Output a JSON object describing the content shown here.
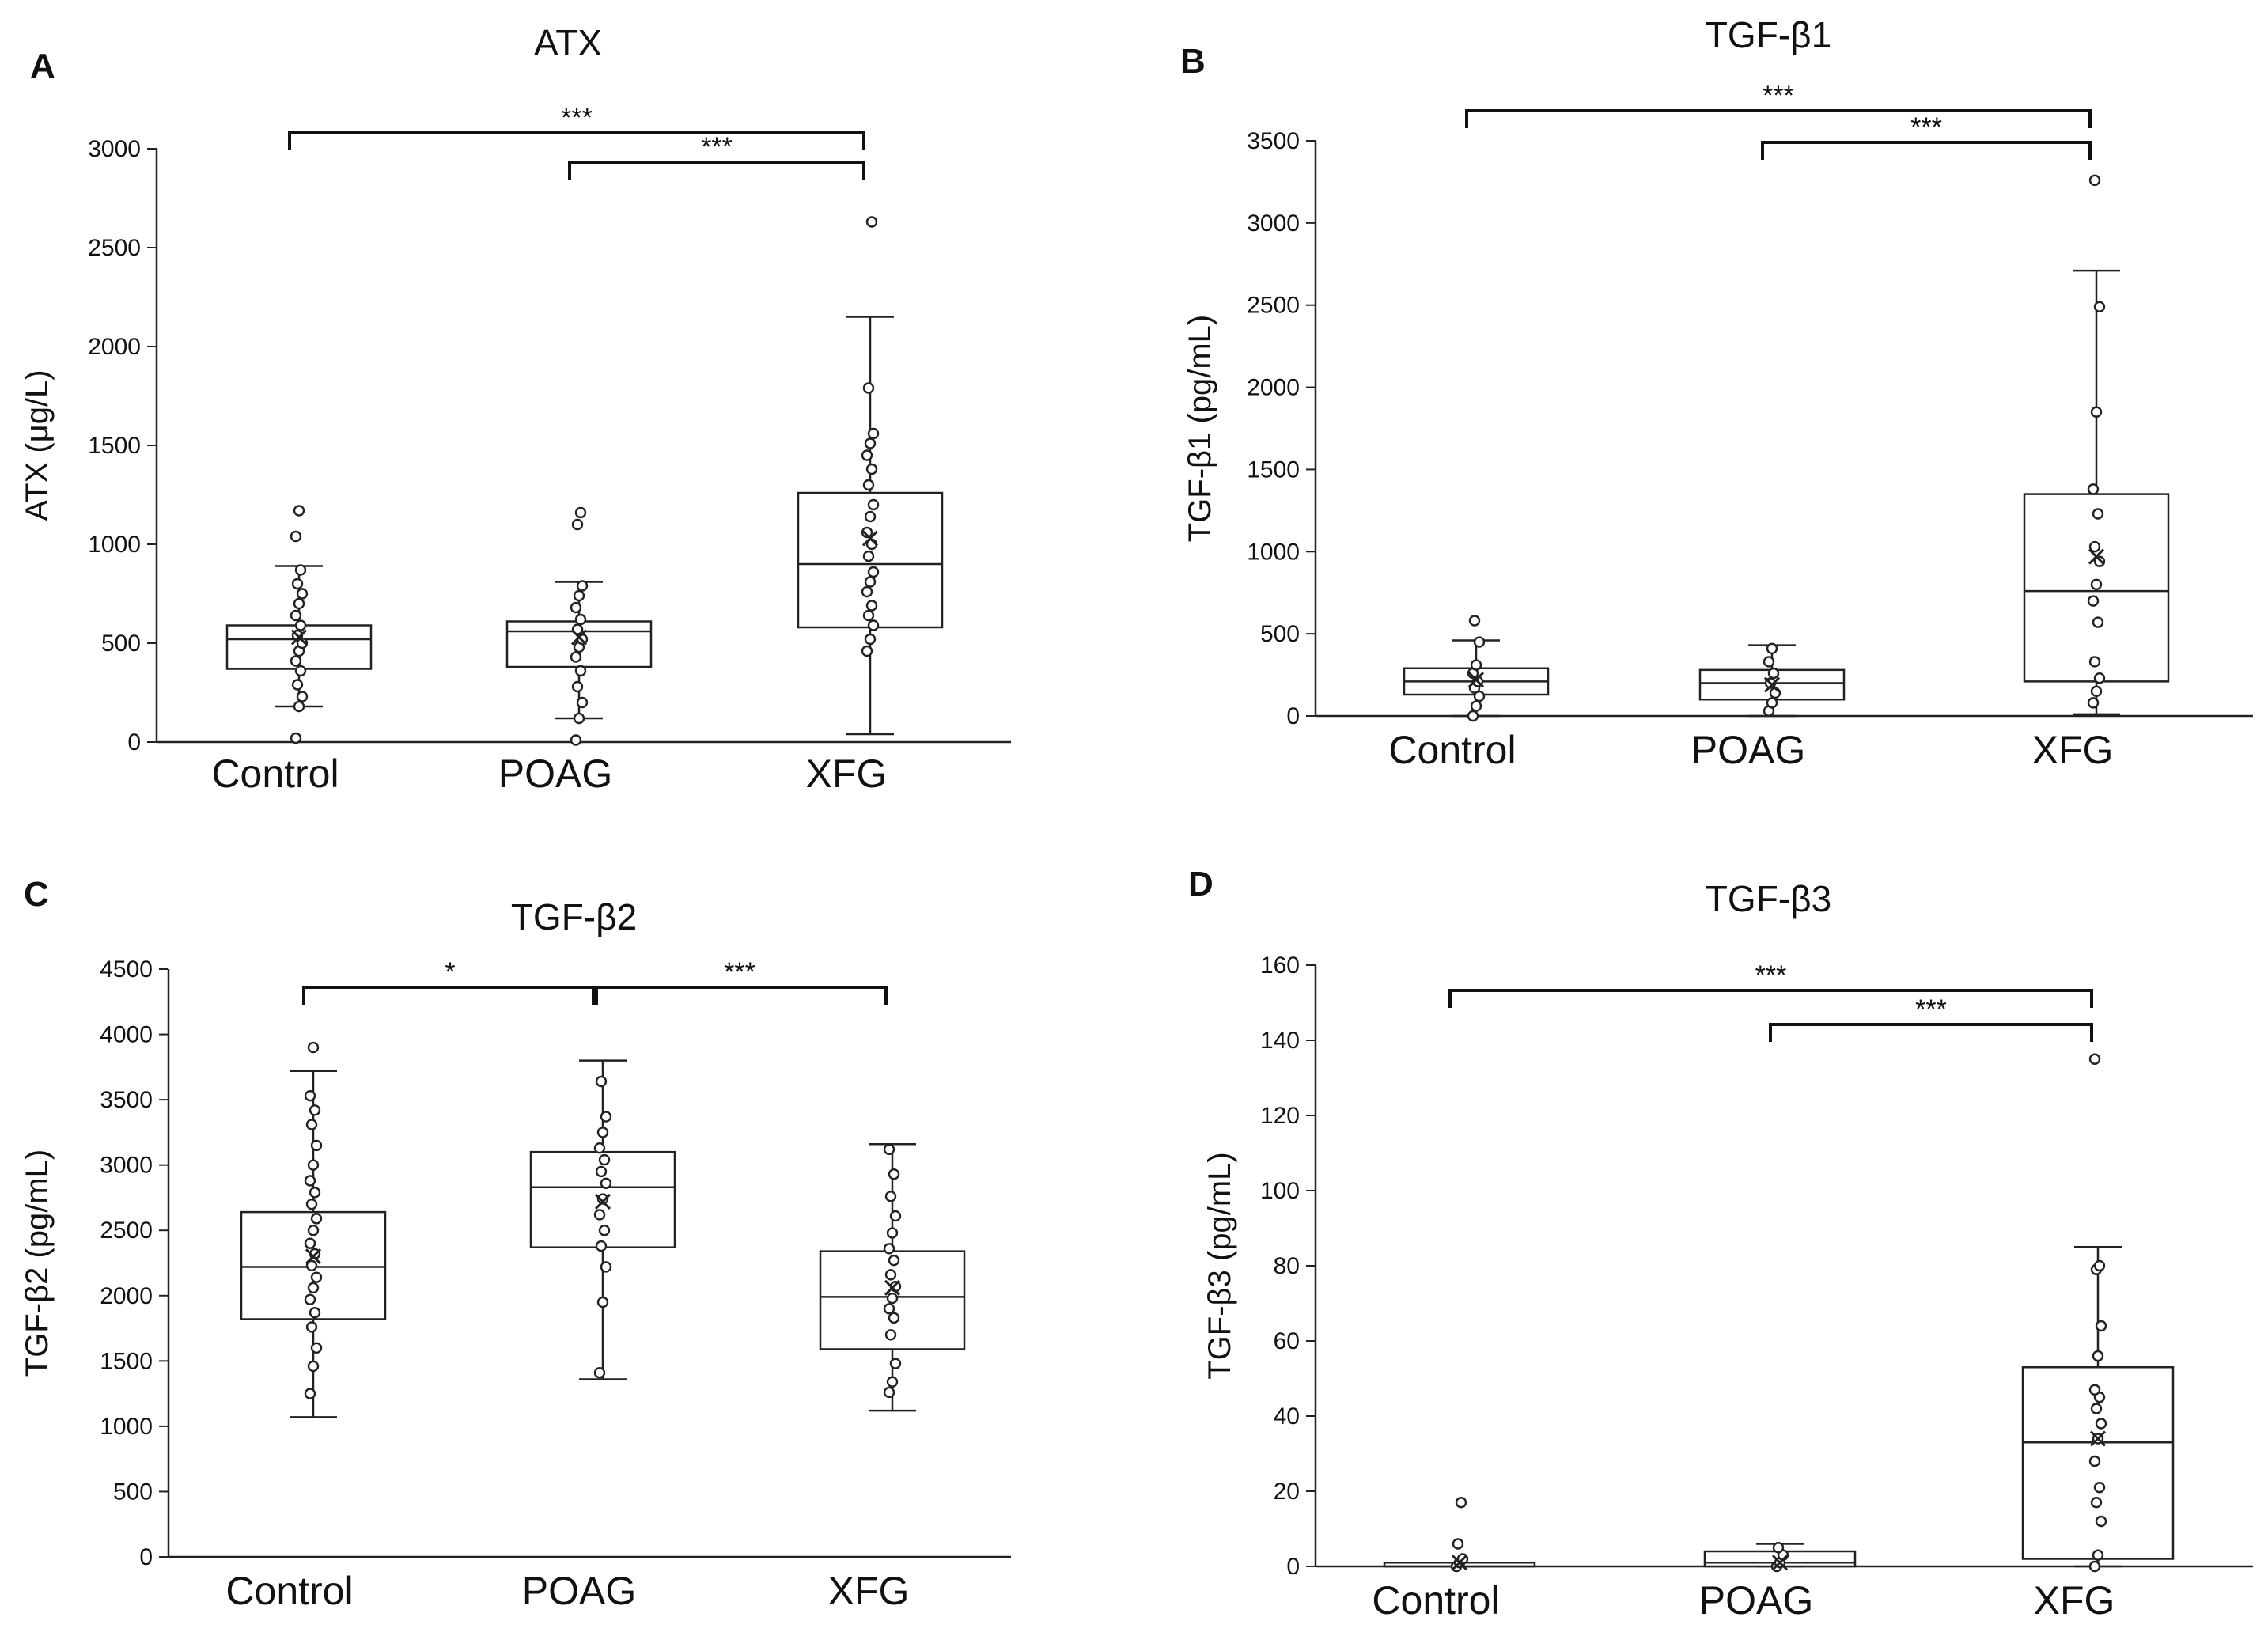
{
  "chart_data": [
    {
      "type": "box",
      "panel": "A",
      "title": "ATX",
      "ylabel": "ATX (μg/L)",
      "ylim": [
        0,
        3000
      ],
      "yticks": [
        0,
        500,
        1000,
        1500,
        2000,
        2500,
        3000
      ],
      "categories": [
        "Control",
        "POAG",
        "XFG"
      ],
      "boxes": [
        {
          "q1": 370,
          "median": 520,
          "q3": 590,
          "whisker_low": 180,
          "whisker_high": 890,
          "mean": 530,
          "points": [
            20,
            180,
            230,
            290,
            360,
            410,
            460,
            500,
            540,
            590,
            640,
            700,
            750,
            800,
            870,
            1040,
            1170
          ]
        },
        {
          "q1": 380,
          "median": 560,
          "q3": 610,
          "whisker_low": 120,
          "whisker_high": 810,
          "mean": 530,
          "points": [
            10,
            120,
            200,
            280,
            360,
            430,
            480,
            520,
            570,
            620,
            680,
            740,
            790,
            1100,
            1160
          ]
        },
        {
          "q1": 580,
          "median": 900,
          "q3": 1260,
          "whisker_low": 40,
          "whisker_high": 2150,
          "mean": 1030,
          "points": [
            460,
            520,
            590,
            640,
            690,
            760,
            810,
            860,
            940,
            1000,
            1060,
            1140,
            1200,
            1300,
            1380,
            1450,
            1510,
            1560,
            1790,
            2630
          ]
        }
      ],
      "comparisons": [
        {
          "from": "Control",
          "to": "XFG",
          "label": "***"
        },
        {
          "from": "POAG",
          "to": "XFG",
          "label": "***"
        }
      ]
    },
    {
      "type": "box",
      "panel": "B",
      "title": "TGF-β1",
      "ylabel": "TGF-β1 (pg/mL)",
      "ylim": [
        0,
        3500
      ],
      "yticks": [
        0,
        500,
        1000,
        1500,
        2000,
        2500,
        3000,
        3500
      ],
      "categories": [
        "Control",
        "POAG",
        "XFG"
      ],
      "boxes": [
        {
          "q1": 130,
          "median": 210,
          "q3": 290,
          "whisker_low": 0,
          "whisker_high": 460,
          "mean": 220,
          "points": [
            0,
            60,
            120,
            170,
            210,
            260,
            310,
            450,
            580
          ]
        },
        {
          "q1": 100,
          "median": 200,
          "q3": 280,
          "whisker_low": 0,
          "whisker_high": 430,
          "mean": 190,
          "points": [
            30,
            80,
            140,
            200,
            260,
            330,
            410
          ]
        },
        {
          "q1": 210,
          "median": 760,
          "q3": 1350,
          "whisker_low": 10,
          "whisker_high": 2710,
          "mean": 970,
          "points": [
            80,
            150,
            230,
            330,
            570,
            700,
            800,
            940,
            1030,
            1230,
            1380,
            1850,
            2490,
            3260
          ]
        }
      ],
      "comparisons": [
        {
          "from": "Control",
          "to": "XFG",
          "label": "***"
        },
        {
          "from": "POAG",
          "to": "XFG",
          "label": "***"
        }
      ]
    },
    {
      "type": "box",
      "panel": "C",
      "title": "TGF-β2",
      "ylabel": "TGF-β2 (pg/mL)",
      "ylim": [
        0,
        4500
      ],
      "yticks": [
        0,
        500,
        1000,
        1500,
        2000,
        2500,
        3000,
        3500,
        4000,
        4500
      ],
      "categories": [
        "Control",
        "POAG",
        "XFG"
      ],
      "boxes": [
        {
          "q1": 1820,
          "median": 2220,
          "q3": 2640,
          "whisker_low": 1070,
          "whisker_high": 3720,
          "mean": 2300,
          "points": [
            1250,
            1460,
            1600,
            1760,
            1870,
            1970,
            2060,
            2140,
            2230,
            2320,
            2400,
            2500,
            2590,
            2700,
            2790,
            2880,
            3000,
            3150,
            3310,
            3420,
            3530,
            3900
          ]
        },
        {
          "q1": 2370,
          "median": 2830,
          "q3": 3100,
          "whisker_low": 1360,
          "whisker_high": 3800,
          "mean": 2720,
          "points": [
            1410,
            1950,
            2220,
            2380,
            2500,
            2620,
            2740,
            2860,
            2950,
            3040,
            3130,
            3250,
            3370,
            3640
          ]
        },
        {
          "q1": 1590,
          "median": 1990,
          "q3": 2340,
          "whisker_low": 1120,
          "whisker_high": 3160,
          "mean": 2060,
          "points": [
            1260,
            1340,
            1480,
            1700,
            1830,
            1900,
            1980,
            2070,
            2160,
            2270,
            2360,
            2480,
            2610,
            2760,
            2930,
            3120
          ]
        }
      ],
      "comparisons": [
        {
          "from": "Control",
          "to": "POAG",
          "label": "*"
        },
        {
          "from": "POAG",
          "to": "XFG",
          "label": "***"
        }
      ]
    },
    {
      "type": "box",
      "panel": "D",
      "title": "TGF-β3",
      "ylabel": "TGF-β3 (pg/mL)",
      "ylim": [
        0,
        160
      ],
      "yticks": [
        0,
        20,
        40,
        60,
        80,
        100,
        120,
        140,
        160
      ],
      "categories": [
        "Control",
        "POAG",
        "XFG"
      ],
      "boxes": [
        {
          "q1": 0,
          "median": 0,
          "q3": 1,
          "whisker_low": 0,
          "whisker_high": 1,
          "mean": 1,
          "points": [
            0,
            1,
            2,
            6,
            17
          ]
        },
        {
          "q1": 0,
          "median": 1,
          "q3": 4,
          "whisker_low": 0,
          "whisker_high": 6,
          "mean": 1,
          "points": [
            0,
            1,
            3,
            5
          ]
        },
        {
          "q1": 2,
          "median": 33,
          "q3": 53,
          "whisker_low": 0,
          "whisker_high": 85,
          "mean": 34,
          "points": [
            0,
            3,
            12,
            17,
            21,
            28,
            34,
            38,
            42,
            45,
            47,
            56,
            64,
            79,
            80,
            135
          ]
        }
      ],
      "comparisons": [
        {
          "from": "Control",
          "to": "XFG",
          "label": "***"
        },
        {
          "from": "POAG",
          "to": "XFG",
          "label": "***"
        }
      ]
    }
  ]
}
